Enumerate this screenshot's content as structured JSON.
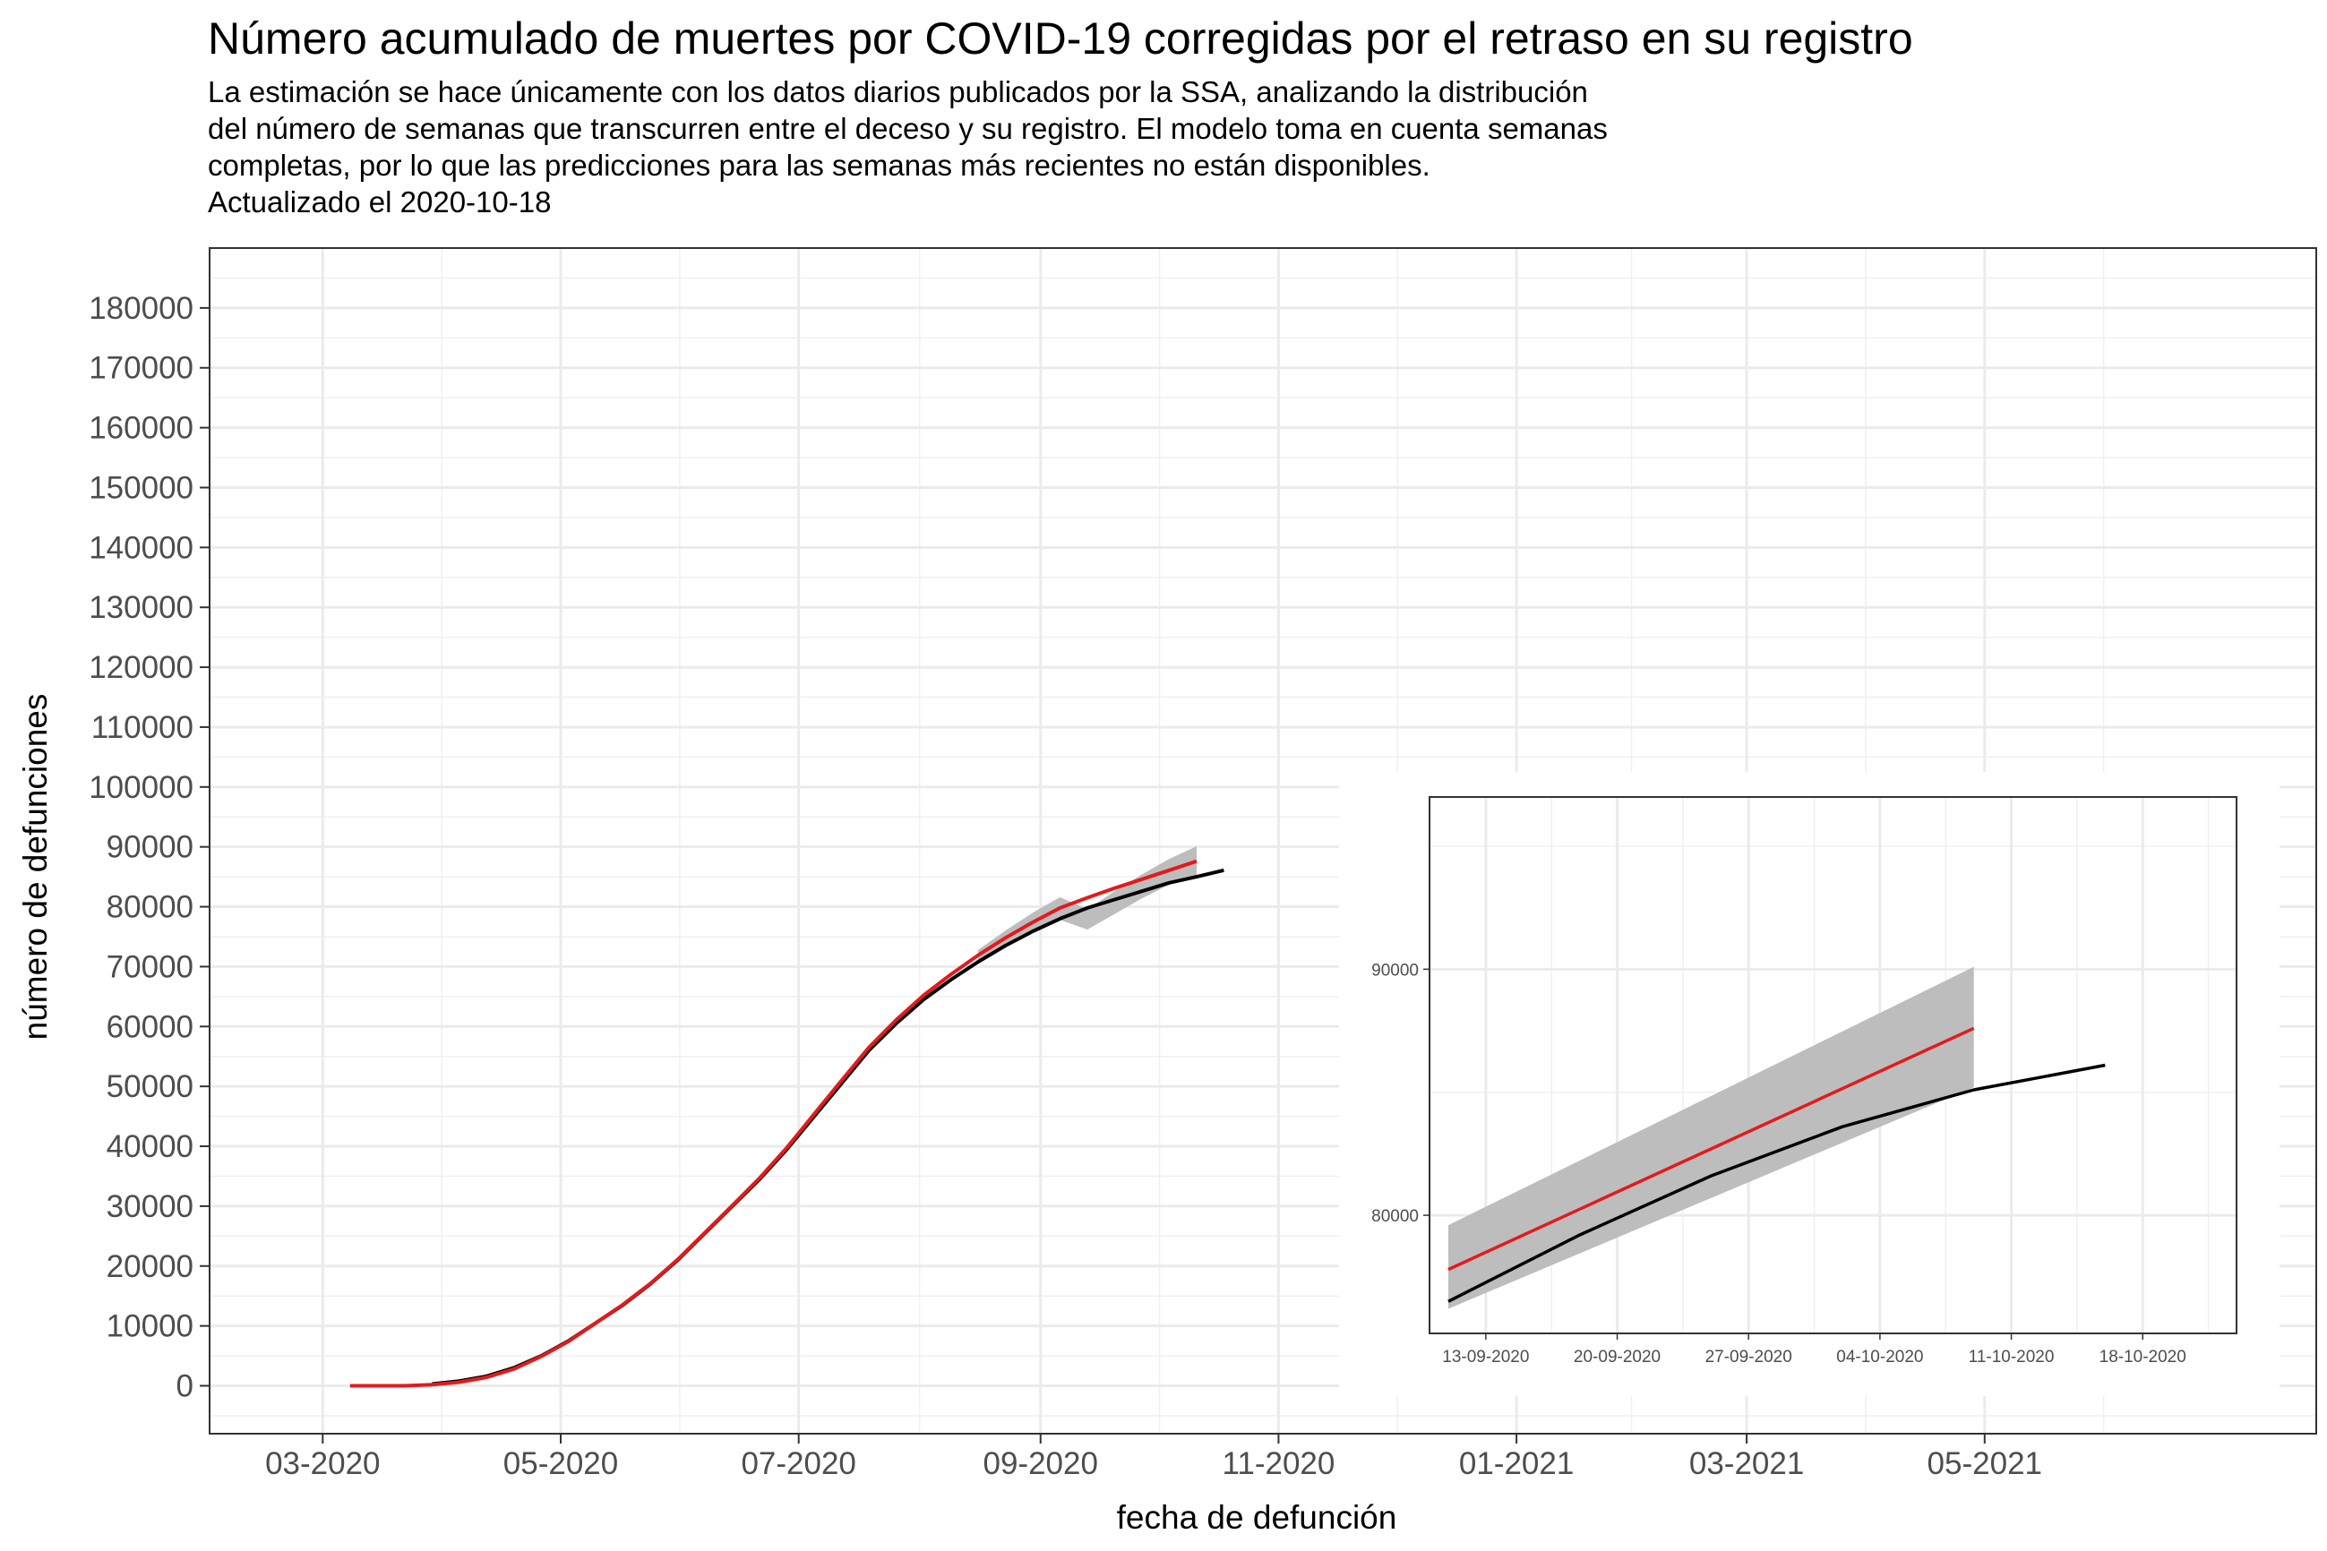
{
  "chart_data": {
    "type": "line",
    "title": "Número acumulado de muertes por COVID-19 corregidas por el retraso en su registro",
    "subtitle": [
      "La estimación se hace únicamente con los datos diarios publicados por la SSA, analizando la distribución",
      "del número de semanas que transcurren entre el deceso y su registro. El modelo toma en cuenta semanas",
      "completas, por lo que las predicciones para las semanas más recientes no están disponibles.",
      "Actualizado el 2020-10-18"
    ],
    "xlabel": "fecha de defunción",
    "ylabel": "número de defunciones",
    "x_ticks": [
      "03-2020",
      "05-2020",
      "07-2020",
      "09-2020",
      "11-2020",
      "01-2021",
      "03-2021",
      "05-2021"
    ],
    "y_ticks": [
      "0",
      "10000",
      "20000",
      "30000",
      "40000",
      "50000",
      "60000",
      "70000",
      "80000",
      "90000",
      "100000",
      "110000",
      "120000",
      "130000",
      "140000",
      "150000",
      "160000",
      "170000",
      "180000"
    ],
    "ylim": [
      -8000,
      190000
    ],
    "xlim": [
      "2020-02-01",
      "2021-07-25"
    ],
    "grid": true,
    "colors": {
      "observed": "#000000",
      "corrected": "#e31a1c",
      "band": "#bdbdbd"
    },
    "series": [
      {
        "role": "observed",
        "x": [
          "2020-03-29",
          "2020-04-05",
          "2020-04-12",
          "2020-04-19",
          "2020-04-26",
          "2020-05-03",
          "2020-05-10",
          "2020-05-17",
          "2020-05-24",
          "2020-05-31",
          "2020-06-07",
          "2020-06-14",
          "2020-06-21",
          "2020-06-28",
          "2020-07-05",
          "2020-07-12",
          "2020-07-19",
          "2020-07-26",
          "2020-08-02",
          "2020-08-09",
          "2020-08-16",
          "2020-08-23",
          "2020-08-30",
          "2020-09-06",
          "2020-09-13",
          "2020-09-20",
          "2020-09-27",
          "2020-10-04",
          "2020-10-11",
          "2020-10-18"
        ],
        "y": [
          300,
          800,
          1600,
          3000,
          5000,
          7500,
          10500,
          13500,
          17000,
          21000,
          25500,
          30000,
          34500,
          39500,
          45000,
          50500,
          56000,
          60500,
          64500,
          67800,
          70800,
          73500,
          75900,
          78000,
          79800,
          81200,
          82600,
          84000,
          85000,
          86100
        ]
      },
      {
        "role": "corrected",
        "x": [
          "2020-03-08",
          "2020-03-15",
          "2020-03-22",
          "2020-03-29",
          "2020-04-05",
          "2020-04-12",
          "2020-04-19",
          "2020-04-26",
          "2020-05-03",
          "2020-05-10",
          "2020-05-17",
          "2020-05-24",
          "2020-05-31",
          "2020-06-07",
          "2020-06-14",
          "2020-06-21",
          "2020-06-28",
          "2020-07-05",
          "2020-07-12",
          "2020-07-19",
          "2020-07-26",
          "2020-08-02",
          "2020-08-09",
          "2020-08-16",
          "2020-08-23",
          "2020-08-30",
          "2020-09-06",
          "2020-09-13",
          "2020-09-20",
          "2020-09-27",
          "2020-10-04",
          "2020-10-11"
        ],
        "y": [
          0,
          0,
          0,
          200,
          600,
          1400,
          2800,
          4900,
          7400,
          10500,
          13600,
          17100,
          21100,
          25600,
          30100,
          34700,
          39800,
          45400,
          51000,
          56500,
          61100,
          65200,
          68700,
          71900,
          74800,
          77400,
          79800,
          81500,
          83100,
          84600,
          86100,
          87600
        ]
      },
      {
        "role": "band_lower",
        "x": [
          "2020-08-16",
          "2020-08-23",
          "2020-08-30",
          "2020-09-06",
          "2020-09-13",
          "2020-09-20",
          "2020-09-27",
          "2020-10-04",
          "2020-10-11"
        ],
        "y": [
          70500,
          73200,
          75600,
          77800,
          76200,
          78800,
          81400,
          83700,
          85200
        ]
      },
      {
        "role": "band_upper",
        "x": [
          "2020-08-16",
          "2020-08-23",
          "2020-08-30",
          "2020-09-06",
          "2020-09-13",
          "2020-09-20",
          "2020-09-27",
          "2020-10-04",
          "2020-10-11"
        ],
        "y": [
          72800,
          76000,
          79000,
          81600,
          79600,
          82600,
          85400,
          88000,
          90100
        ]
      }
    ],
    "inset": {
      "x_ticks": [
        "13-09-2020",
        "20-09-2020",
        "27-09-2020",
        "04-10-2020",
        "11-10-2020",
        "18-10-2020"
      ],
      "y_ticks": [
        "80000",
        "90000"
      ],
      "xlim": [
        "2020-09-10",
        "2020-10-23"
      ],
      "ylim": [
        75200,
        97000
      ],
      "observed": {
        "x": [
          "2020-09-11",
          "2020-09-18",
          "2020-09-25",
          "2020-10-02",
          "2020-10-09",
          "2020-10-16"
        ],
        "y": [
          76500,
          79200,
          81600,
          83600,
          85100,
          86100
        ]
      },
      "corrected": {
        "x": [
          "2020-09-11",
          "2020-10-09"
        ],
        "y": [
          77800,
          87600
        ]
      },
      "band": {
        "x": [
          "2020-09-11",
          "2020-10-09"
        ],
        "lower": [
          76200,
          85200
        ],
        "upper": [
          79600,
          90100
        ]
      }
    }
  }
}
